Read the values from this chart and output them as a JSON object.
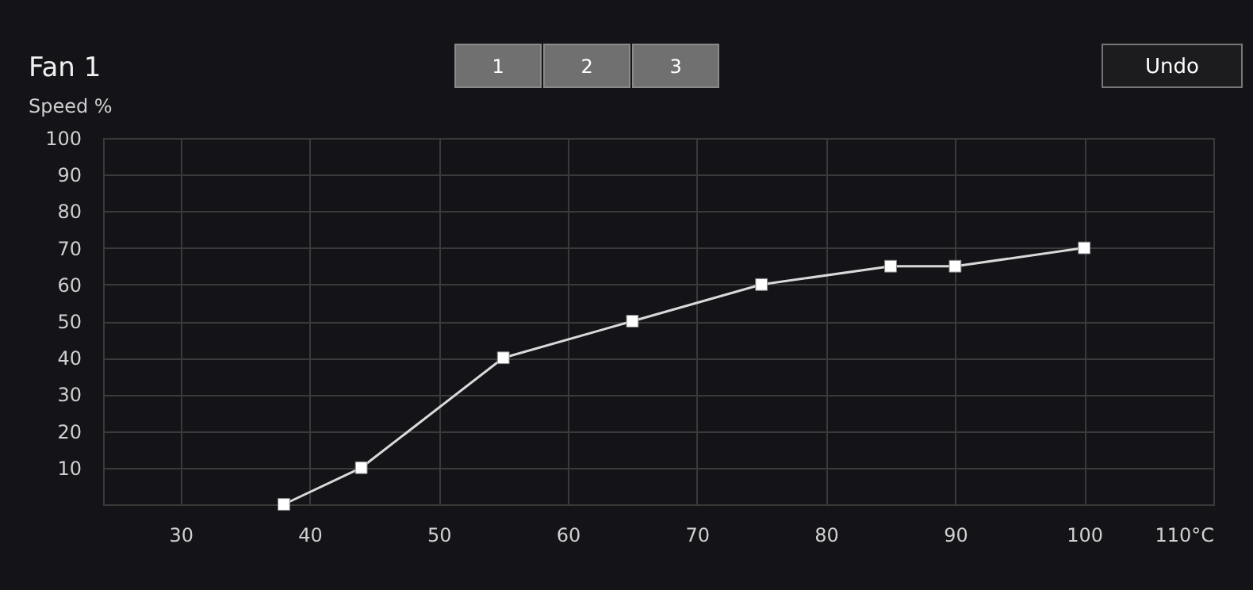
{
  "chart_data": {
    "type": "line",
    "title": "Fan 1",
    "ylabel": "Speed %",
    "annotations": [
      "1",
      "2",
      "3",
      "Undo"
    ],
    "x": [
      38,
      44,
      55,
      65,
      75,
      85,
      90,
      100
    ],
    "series": [
      {
        "color": "#d9d9d9",
        "values": [
          0,
          10,
          40,
          50,
          60,
          65,
          65,
          70
        ]
      }
    ],
    "xlim": [
      24,
      110
    ],
    "xticks": [
      30,
      40,
      50,
      60,
      70,
      80,
      90,
      100,
      {
        "value": 110,
        "label": "110°C"
      }
    ],
    "ylim": [
      0,
      100
    ],
    "yticks": [
      {
        "value": 0,
        "label": null
      },
      10,
      20,
      30,
      40,
      50,
      60,
      70,
      80,
      90,
      100
    ],
    "grid": true,
    "marker": "square",
    "line_style": "solid"
  }
}
